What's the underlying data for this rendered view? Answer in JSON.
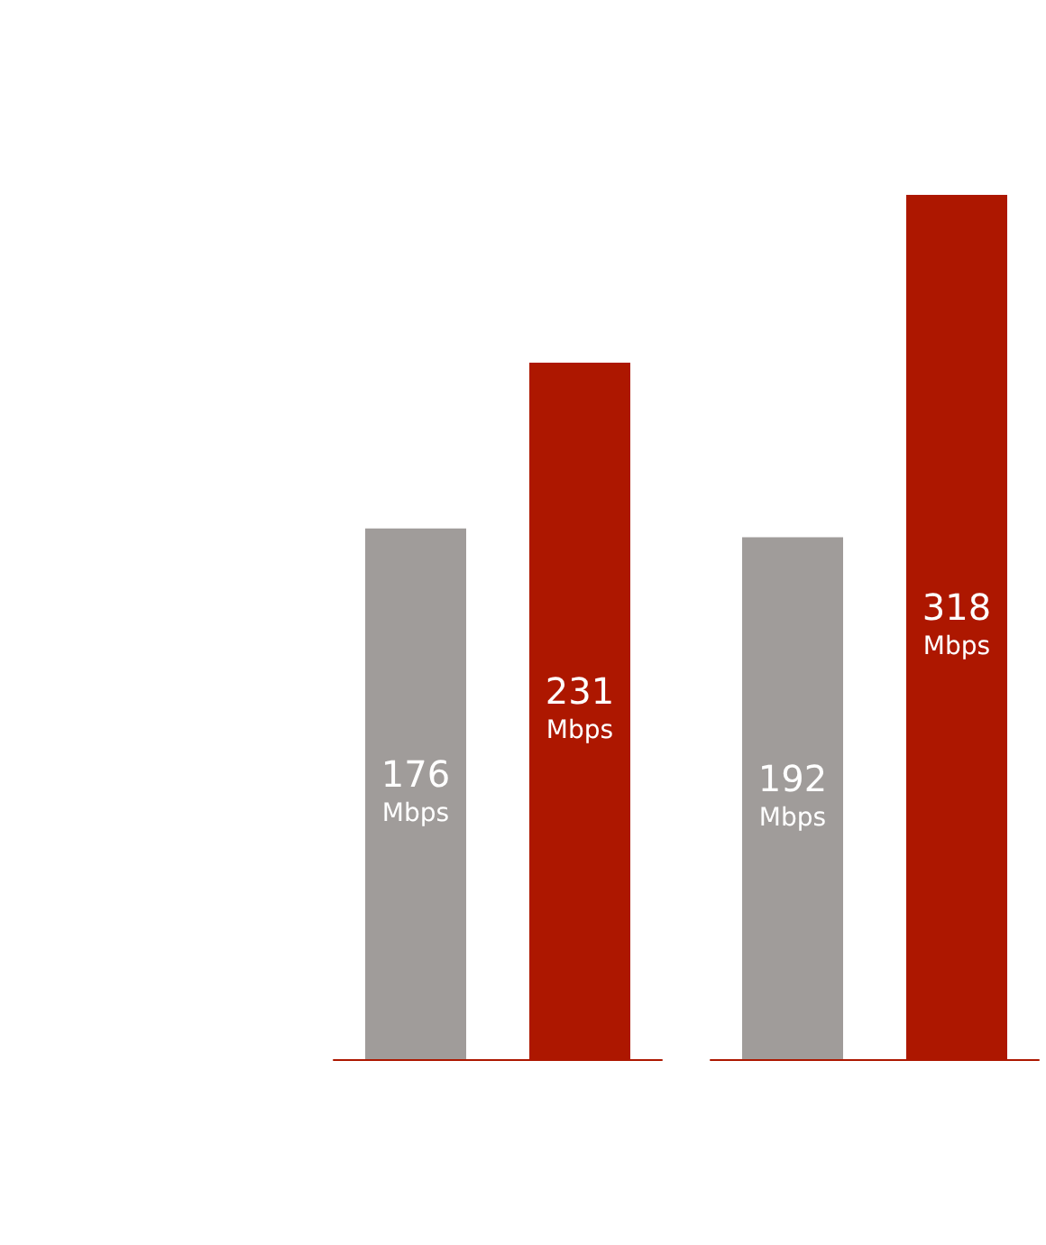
{
  "chart_data": [
    {
      "type": "bar",
      "categories": [
        null,
        null
      ],
      "values": [
        176,
        231
      ],
      "colors": [
        "#a09c9a",
        "#ad1700"
      ],
      "value_labels": [
        "176 Mbps",
        "231 Mbps"
      ]
    },
    {
      "type": "bar",
      "categories": [
        null,
        null
      ],
      "values": [
        192,
        318
      ],
      "colors": [
        "#a09c9a",
        "#ad1700"
      ],
      "value_labels": [
        "192 Mbps",
        "318 Mbps"
      ]
    }
  ]
}
